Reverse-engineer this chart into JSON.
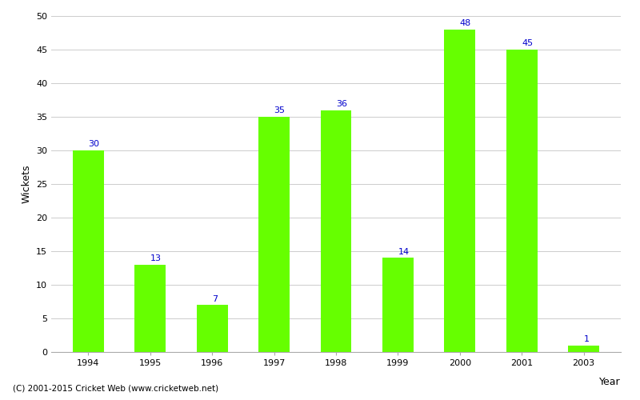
{
  "years": [
    "1994",
    "1995",
    "1996",
    "1997",
    "1998",
    "1999",
    "2000",
    "2001",
    "2003"
  ],
  "wickets": [
    30,
    13,
    7,
    35,
    36,
    14,
    48,
    45,
    1
  ],
  "bar_color": "#66ff00",
  "label_color": "#0000cc",
  "xlabel": "Year",
  "ylabel": "Wickets",
  "ylim": [
    0,
    50
  ],
  "yticks": [
    0,
    5,
    10,
    15,
    20,
    25,
    30,
    35,
    40,
    45,
    50
  ],
  "background_color": "#ffffff",
  "footer": "(C) 2001-2015 Cricket Web (www.cricketweb.net)",
  "label_fontsize": 8,
  "axis_label_fontsize": 9,
  "tick_fontsize": 8,
  "bar_width": 0.5,
  "grid_color": "#cccccc"
}
